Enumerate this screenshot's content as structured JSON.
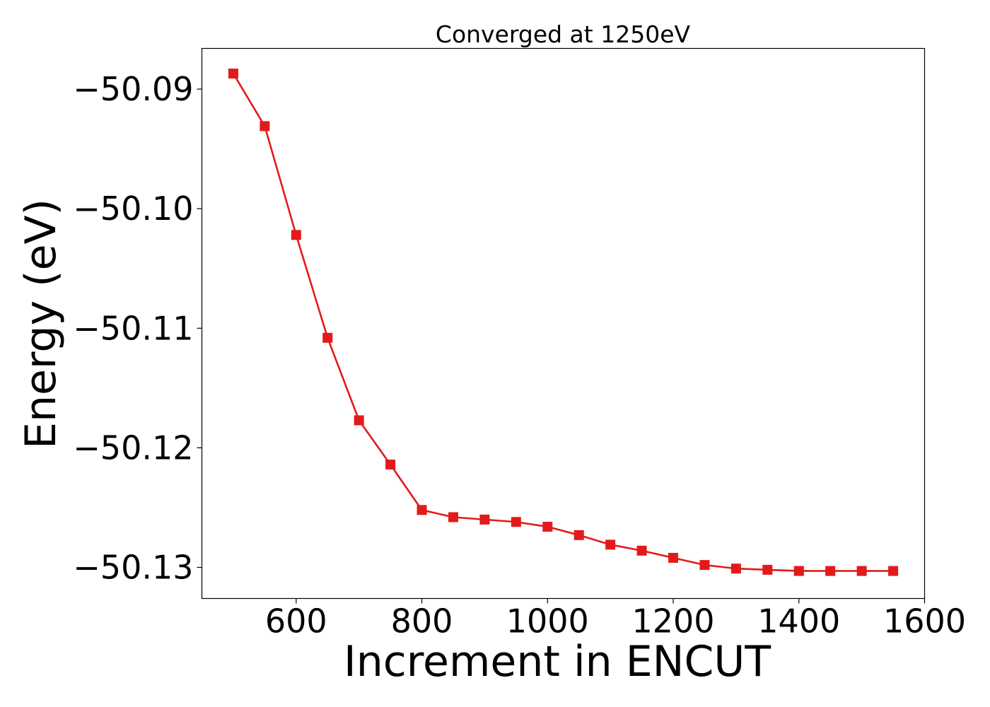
{
  "chart_data": {
    "type": "line",
    "title": "Converged at 1250eV",
    "xlabel": "Increment in ENCUT",
    "ylabel": "Energy (eV)",
    "xlim": [
      450,
      1600
    ],
    "ylim": [
      -50.1326,
      -50.0866
    ],
    "xticks": [
      600,
      800,
      1000,
      1200,
      1400,
      1600
    ],
    "xtick_labels": [
      "600",
      "800",
      "1000",
      "1200",
      "1400",
      "1600"
    ],
    "yticks": [
      -50.09,
      -50.1,
      -50.11,
      -50.12,
      -50.13
    ],
    "ytick_labels": [
      "−50.09",
      "−50.10",
      "−50.11",
      "−50.12",
      "−50.13"
    ],
    "grid": false,
    "series": [
      {
        "color": "#e31a1c",
        "marker": "square",
        "x": [
          500,
          550,
          600,
          650,
          700,
          750,
          800,
          850,
          900,
          950,
          1000,
          1050,
          1100,
          1150,
          1200,
          1250,
          1300,
          1350,
          1400,
          1450,
          1500,
          1550
        ],
        "y": [
          -50.0887,
          -50.0931,
          -50.1022,
          -50.1108,
          -50.1177,
          -50.1214,
          -50.1252,
          -50.1258,
          -50.126,
          -50.1262,
          -50.1266,
          -50.1273,
          -50.1281,
          -50.1286,
          -50.1292,
          -50.1298,
          -50.1301,
          -50.1302,
          -50.1303,
          -50.1303,
          -50.1303,
          -50.1303
        ]
      }
    ]
  }
}
